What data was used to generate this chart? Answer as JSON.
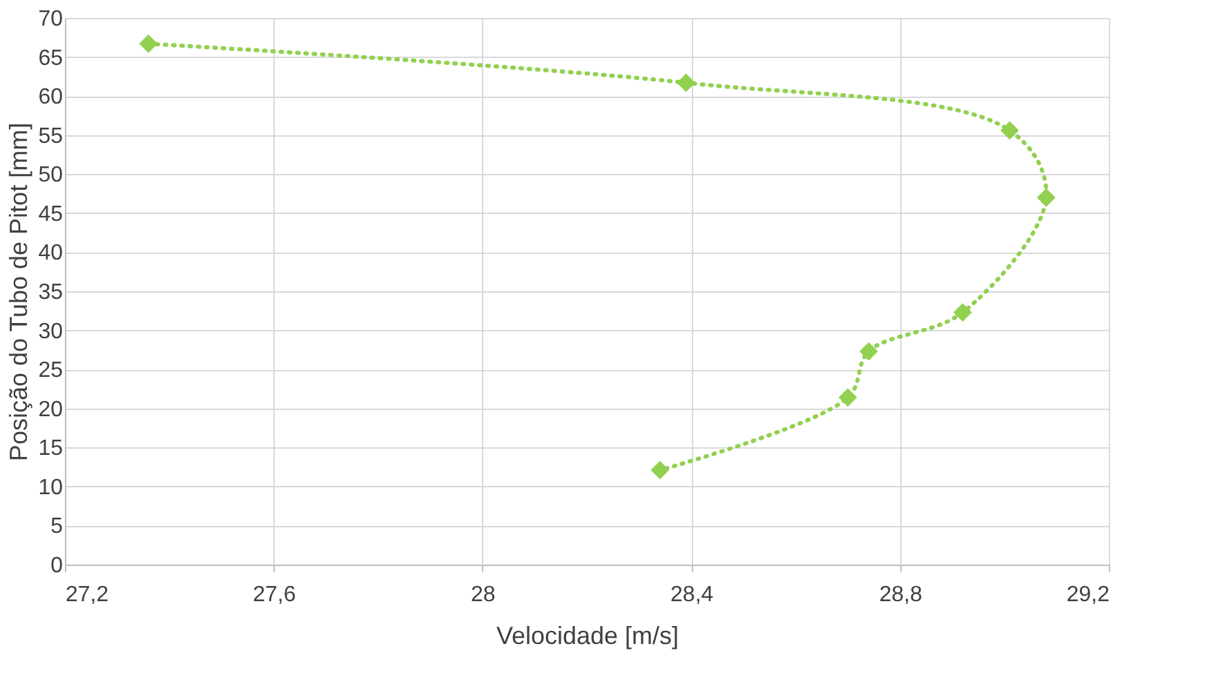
{
  "chart_data": {
    "type": "line",
    "xlabel": "Velocidade [m/s]",
    "ylabel": "Posição do Tubo de Pitot [mm]",
    "series": [
      {
        "color": "#92d050",
        "x": [
          27.36,
          28.39,
          29.01,
          29.08,
          28.92,
          28.74,
          28.7,
          28.34
        ],
        "values": [
          66.7,
          61.7,
          55.6,
          47,
          32.3,
          27.3,
          21.4,
          12.1
        ]
      }
    ],
    "xlim": [
      27.2,
      29.2
    ],
    "xticks": [
      {
        "value": 27.2,
        "label": "27,2"
      },
      {
        "value": 27.6,
        "label": "27,6"
      },
      28,
      {
        "value": 28.4,
        "label": "28,4"
      },
      {
        "value": 28.8,
        "label": "28,8"
      },
      {
        "value": 29.2,
        "label": "29,2"
      }
    ],
    "ylim": [
      0,
      70
    ],
    "yticks": [
      0,
      5,
      10,
      15,
      20,
      25,
      30,
      35,
      40,
      45,
      50,
      55,
      60,
      65,
      70
    ],
    "grid": true,
    "marker": "diamond",
    "line_style": "dotted"
  }
}
